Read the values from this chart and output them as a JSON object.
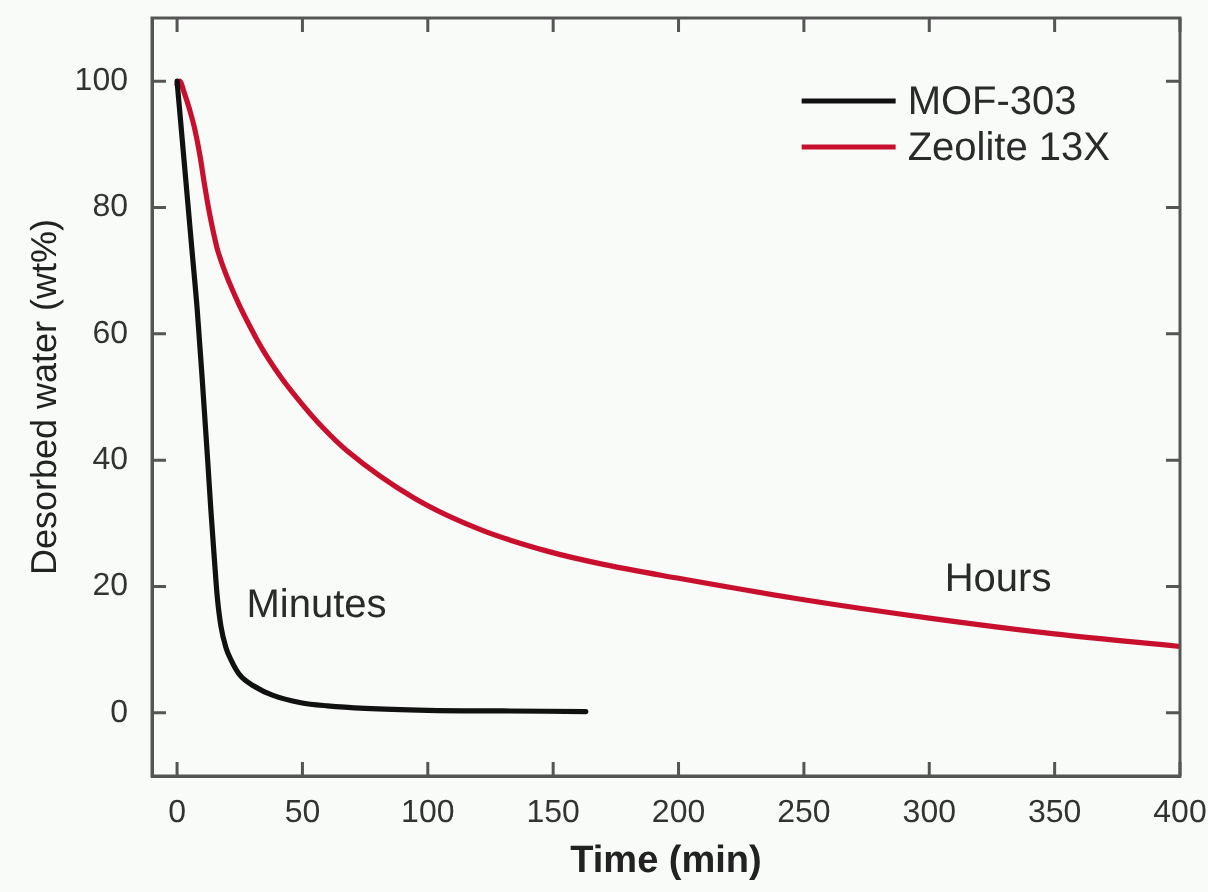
{
  "chart_data": {
    "type": "line",
    "xlabel": "Time (min)",
    "ylabel": "Desorbed water (wt%)",
    "xlim": [
      -10,
      400
    ],
    "ylim": [
      -10,
      110
    ],
    "xticks": [
      0,
      50,
      100,
      150,
      200,
      250,
      300,
      350,
      400
    ],
    "yticks": [
      0,
      20,
      40,
      60,
      80,
      100
    ],
    "grid": false,
    "legend": "top right",
    "marker": "none",
    "line_style": "solid",
    "series": [
      {
        "name": "MOF-303",
        "color": "#111111",
        "x": [
          0,
          2,
          4,
          6,
          8,
          10,
          12.2,
          13.5,
          14.9,
          16,
          17.5,
          19.5,
          21.5,
          25,
          30.8,
          38,
          49.4,
          60,
          75,
          100,
          130,
          163
        ],
        "values": [
          100,
          91,
          82,
          73,
          64,
          53,
          40,
          32,
          24.2,
          18.5,
          13.7,
          10.3,
          8.4,
          6,
          4.2,
          2.8,
          1.6,
          1.1,
          0.7,
          0.4,
          0.3,
          0.2
        ]
      },
      {
        "name": "Zeolite 13X",
        "color": "#c8102e",
        "x": [
          0,
          1,
          3,
          5,
          7,
          9,
          11,
          12.5,
          14,
          16,
          18.5,
          21.5,
          25,
          28,
          32,
          36,
          42,
          50,
          58,
          68,
          94.5,
          121,
          147.6,
          170,
          200,
          250,
          300,
          350,
          400
        ],
        "values": [
          99.5,
          100,
          98,
          95.5,
          92.5,
          88.5,
          83.5,
          80,
          77,
          73.5,
          70.5,
          67.5,
          64.4,
          62,
          59,
          56.3,
          52.8,
          48.8,
          45.2,
          41.4,
          34,
          29,
          25.6,
          23.5,
          21.3,
          17.9,
          15,
          12.5,
          10.5
        ]
      }
    ],
    "annotations": [
      "Minutes",
      "Hours"
    ]
  }
}
